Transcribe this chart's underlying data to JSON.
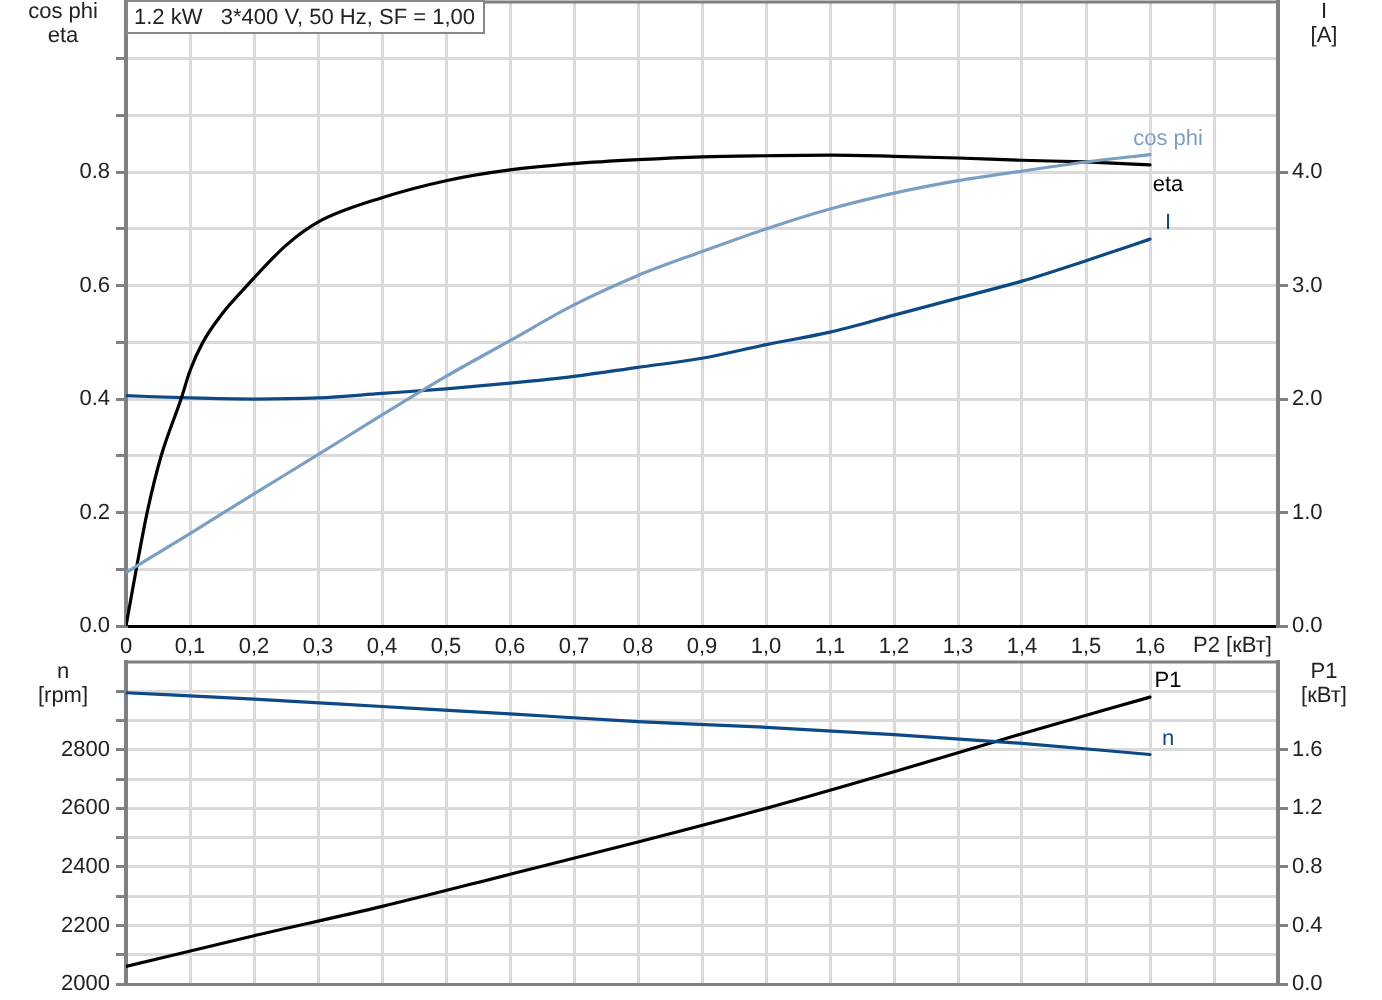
{
  "chart_data": [
    {
      "type": "line",
      "title": "1.2 kW   3*400 V, 50 Hz, SF = 1,00",
      "xlabel": "P2 [кВт]",
      "ylabel": "cos phi\neta",
      "y2label": "I\n[A]",
      "x": [
        0,
        0.1,
        0.2,
        0.3,
        0.4,
        0.5,
        0.6,
        0.7,
        0.8,
        0.9,
        1.0,
        1.1,
        1.2,
        1.3,
        1.4,
        1.5,
        1.6
      ],
      "series": [
        {
          "name": "cos phi",
          "color": "#7b9fc3",
          "values": [
            0.094,
            0.163,
            0.233,
            0.302,
            0.372,
            0.44,
            0.503,
            0.566,
            0.618,
            0.66,
            0.7,
            0.735,
            0.763,
            0.785,
            0.802,
            0.818,
            0.831
          ]
        },
        {
          "name": "eta",
          "color": "#000000",
          "x": [
            0,
            0.016,
            0.033,
            0.055,
            0.086,
            0.1,
            0.12,
            0.15,
            0.189,
            0.25,
            0.3,
            0.4,
            0.5,
            0.6,
            0.7,
            0.8,
            0.9,
            1.0,
            1.1,
            1.2,
            1.3,
            1.4,
            1.5,
            1.6
          ],
          "values": [
            0,
            0.1,
            0.2,
            0.3,
            0.4,
            0.45,
            0.5,
            0.55,
            0.6,
            0.671,
            0.712,
            0.755,
            0.785,
            0.804,
            0.815,
            0.822,
            0.827,
            0.829,
            0.83,
            0.828,
            0.825,
            0.821,
            0.818,
            0.813
          ]
        },
        {
          "name": "I",
          "color": "#0d4a85",
          "axis": "y2",
          "values": [
            2.03,
            2.01,
            2.0,
            2.01,
            2.05,
            2.09,
            2.14,
            2.2,
            2.28,
            2.36,
            2.48,
            2.59,
            2.74,
            2.89,
            3.04,
            3.22,
            3.41
          ]
        }
      ],
      "xlim": [
        0,
        1.8
      ],
      "xticks": [
        0,
        {
          "value": 0.1,
          "label": "0,1"
        },
        {
          "value": 0.2,
          "label": "0,2"
        },
        {
          "value": 0.3,
          "label": "0,3"
        },
        {
          "value": 0.4,
          "label": "0,4"
        },
        {
          "value": 0.5,
          "label": "0,5"
        },
        {
          "value": 0.6,
          "label": "0,6"
        },
        {
          "value": 0.7,
          "label": "0,7"
        },
        {
          "value": 0.8,
          "label": "0,8"
        },
        {
          "value": 0.9,
          "label": "0,9"
        },
        {
          "value": 1.0,
          "label": "1,0"
        },
        {
          "value": 1.1,
          "label": "1,1"
        },
        {
          "value": 1.2,
          "label": "1,2"
        },
        {
          "value": 1.3,
          "label": "1,3"
        },
        {
          "value": 1.4,
          "label": "1,4"
        },
        {
          "value": 1.5,
          "label": "1,5"
        },
        {
          "value": 1.6,
          "label": "1,6"
        },
        {
          "value": 1.7,
          "label": null
        }
      ],
      "ylim": [
        0,
        1.1
      ],
      "yticks": [
        {
          "value": 0,
          "label": "0.0"
        },
        {
          "value": 0.1,
          "label": null
        },
        0.2,
        {
          "value": 0.3,
          "label": null
        },
        0.4,
        {
          "value": 0.5,
          "label": null
        },
        0.6,
        {
          "value": 0.7,
          "label": null
        },
        0.8,
        {
          "value": 0.9,
          "label": null
        },
        {
          "value": 1.0,
          "label": null
        }
      ],
      "y2lim": [
        0,
        5.5
      ],
      "y2ticks": [
        {
          "value": 0,
          "label": "0.0"
        },
        {
          "value": 1,
          "label": "1.0"
        },
        {
          "value": 2,
          "label": "2.0"
        },
        {
          "value": 3,
          "label": "3.0"
        },
        {
          "value": 4,
          "label": "4.0"
        }
      ],
      "grid": true
    },
    {
      "type": "line",
      "ylabel": "n\n[rpm]",
      "y2label": "P1\n[кВт]",
      "x": [
        0,
        0.2,
        0.4,
        0.6,
        0.8,
        1.0,
        1.2,
        1.4,
        1.6
      ],
      "series": [
        {
          "name": "n",
          "color": "#0d4a85",
          "values": [
            2995,
            2973,
            2948,
            2923,
            2896,
            2877,
            2852,
            2822,
            2784
          ]
        },
        {
          "name": "P1",
          "color": "#000000",
          "axis": "y2",
          "values": [
            0.12,
            0.33,
            0.53,
            0.75,
            0.97,
            1.2,
            1.45,
            1.71,
            1.96
          ]
        }
      ],
      "xlim": [
        0,
        1.8
      ],
      "xticks": [
        0,
        0.1,
        0.2,
        0.3,
        0.4,
        0.5,
        0.6,
        0.7,
        0.8,
        0.9,
        1.0,
        1.1,
        1.2,
        1.3,
        1.4,
        1.5,
        1.6,
        1.7
      ],
      "ylim": [
        2000,
        3100
      ],
      "yticks": [
        2000,
        {
          "value": 2100,
          "label": null
        },
        2200,
        {
          "value": 2300,
          "label": null
        },
        2400,
        {
          "value": 2500,
          "label": null
        },
        2600,
        {
          "value": 2700,
          "label": null
        },
        2800,
        {
          "value": 2900,
          "label": null
        },
        {
          "value": 3000,
          "label": null
        }
      ],
      "y2lim": [
        0,
        2.2
      ],
      "y2ticks": [
        {
          "value": 0,
          "label": "0.0"
        },
        0.4,
        0.8,
        1.2,
        1.6
      ],
      "grid": true,
      "tick_labels": "y"
    }
  ]
}
